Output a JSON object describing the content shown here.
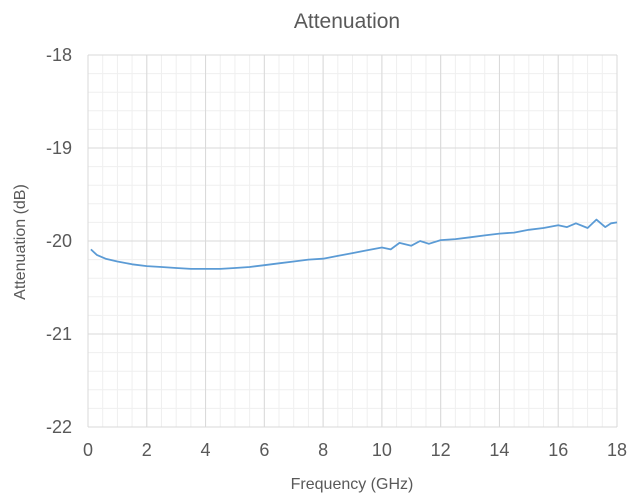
{
  "chart_data": {
    "type": "line",
    "title": "Attenuation",
    "xlabel": "Frequency (GHz)",
    "ylabel": "Attenuation (dB)",
    "xlim": [
      0,
      18
    ],
    "ylim": [
      -22,
      -18
    ],
    "x_ticks": [
      0,
      2,
      4,
      6,
      8,
      10,
      12,
      14,
      16,
      18
    ],
    "x_tick_labels": [
      "0",
      "2",
      "4",
      "6",
      "8",
      "10",
      "12",
      "14",
      "16",
      "18"
    ],
    "y_ticks": [
      -18,
      -19,
      -20,
      -21,
      -22
    ],
    "y_tick_labels": [
      "-18",
      "-19",
      "-20",
      "-21",
      "-22"
    ],
    "grid": {
      "major": true,
      "minor": true
    },
    "legend": "none",
    "series": [
      {
        "color": "#5b9bd5",
        "x": [
          0.1,
          0.3,
          0.6,
          1.0,
          1.5,
          2.0,
          2.5,
          3.0,
          3.5,
          4.0,
          4.5,
          5.0,
          5.5,
          6.0,
          6.5,
          7.0,
          7.5,
          8.0,
          8.5,
          9.0,
          9.5,
          10.0,
          10.3,
          10.6,
          11.0,
          11.3,
          11.6,
          12.0,
          12.5,
          13.0,
          13.5,
          14.0,
          14.5,
          15.0,
          15.5,
          16.0,
          16.3,
          16.6,
          17.0,
          17.3,
          17.6,
          17.8,
          18.0
        ],
        "y": [
          -20.09,
          -20.15,
          -20.19,
          -20.22,
          -20.25,
          -20.27,
          -20.28,
          -20.29,
          -20.3,
          -20.3,
          -20.3,
          -20.29,
          -20.28,
          -20.26,
          -20.24,
          -20.22,
          -20.2,
          -20.19,
          -20.16,
          -20.13,
          -20.1,
          -20.07,
          -20.09,
          -20.02,
          -20.05,
          -20.0,
          -20.03,
          -19.99,
          -19.98,
          -19.96,
          -19.94,
          -19.92,
          -19.91,
          -19.88,
          -19.86,
          -19.83,
          -19.85,
          -19.81,
          -19.86,
          -19.77,
          -19.85,
          -19.81,
          -19.8
        ]
      }
    ]
  }
}
